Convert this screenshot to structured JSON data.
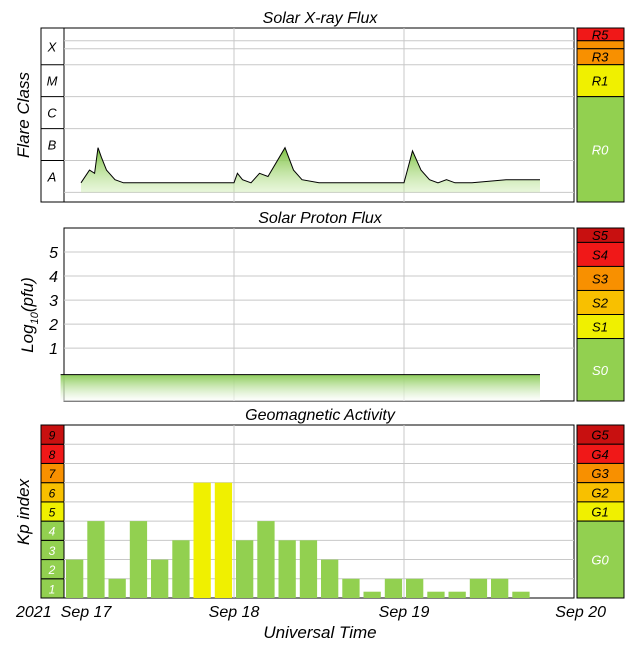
{
  "colors": {
    "green": "#92d050",
    "yellow": "#f0f000",
    "gold": "#f8c000",
    "orange": "#f89000",
    "red": "#f01818",
    "darkred": "#c81010",
    "grid": "#c8c8c8",
    "trace": "#000000"
  },
  "chart_data": [
    {
      "type": "line",
      "title": "Solar X-ray Flux",
      "ylabel": "Flare Class",
      "y_scale": "log",
      "x_unit": "days since 2021-09-17 00:00 UT",
      "class_labels": [
        "A",
        "B",
        "C",
        "M",
        "X"
      ],
      "x": [
        -0.02,
        0.1,
        0.15,
        0.18,
        0.2,
        0.22,
        0.25,
        0.3,
        0.35,
        0.45,
        0.6,
        0.8,
        1.0,
        1.02,
        1.05,
        1.1,
        1.15,
        1.2,
        1.3,
        1.35,
        1.4,
        1.5,
        1.6,
        1.7,
        1.8,
        1.9,
        2.0,
        2.02,
        2.05,
        2.1,
        2.15,
        2.2,
        2.25,
        2.3,
        2.4,
        2.6,
        2.8
      ],
      "y": [
        -7.6,
        -7.7,
        -7.3,
        -7.4,
        -6.6,
        -6.9,
        -7.3,
        -7.6,
        -7.7,
        -7.7,
        -7.7,
        -7.7,
        -7.7,
        -7.4,
        -7.6,
        -7.7,
        -7.4,
        -7.5,
        -6.6,
        -7.3,
        -7.6,
        -7.7,
        -7.7,
        -7.7,
        -7.7,
        -7.7,
        -7.7,
        -7.3,
        -6.7,
        -7.3,
        -7.6,
        -7.7,
        -7.6,
        -7.7,
        -7.7,
        -7.6,
        -7.6
      ],
      "scale_labels": [
        "R5",
        "R3",
        "R1",
        "R0"
      ]
    },
    {
      "type": "area",
      "title": "Solar Proton Flux",
      "ylabel": "Log10(pfu)",
      "ylabel_text": "Log",
      "ylabel_sub": "10",
      "ylabel_tail": "(pfu)",
      "yticks": [
        "5",
        "4",
        "3",
        "2",
        "1"
      ],
      "ylim": [
        -1.2,
        6
      ],
      "x_unit": "days since 2021-09-17 00:00 UT",
      "x": [
        -0.02,
        2.8
      ],
      "y": [
        -0.1,
        -0.1
      ],
      "scale_labels": [
        "S5",
        "S4",
        "S3",
        "S2",
        "S1",
        "S0"
      ]
    },
    {
      "type": "bar",
      "title": "Geomagnetic Activity",
      "ylabel": "Kp index",
      "ylim": [
        0,
        9
      ],
      "yticks": [
        "9",
        "8",
        "7",
        "6",
        "5",
        "4",
        "3",
        "2",
        "1"
      ],
      "interval_hours": 3,
      "values": [
        2,
        4,
        1,
        4,
        2,
        3,
        6,
        6,
        3,
        4,
        3,
        3,
        2,
        1,
        0.33,
        1,
        1,
        0.33,
        0.33,
        1,
        1,
        0.33
      ],
      "scale_labels": [
        "G5",
        "G4",
        "G3",
        "G2",
        "G1",
        "G0"
      ],
      "xticks": [
        "Sep 17",
        "Sep 18",
        "Sep 19",
        "Sep 20"
      ],
      "year_label": "2021",
      "xlabel": "Universal Time"
    }
  ]
}
